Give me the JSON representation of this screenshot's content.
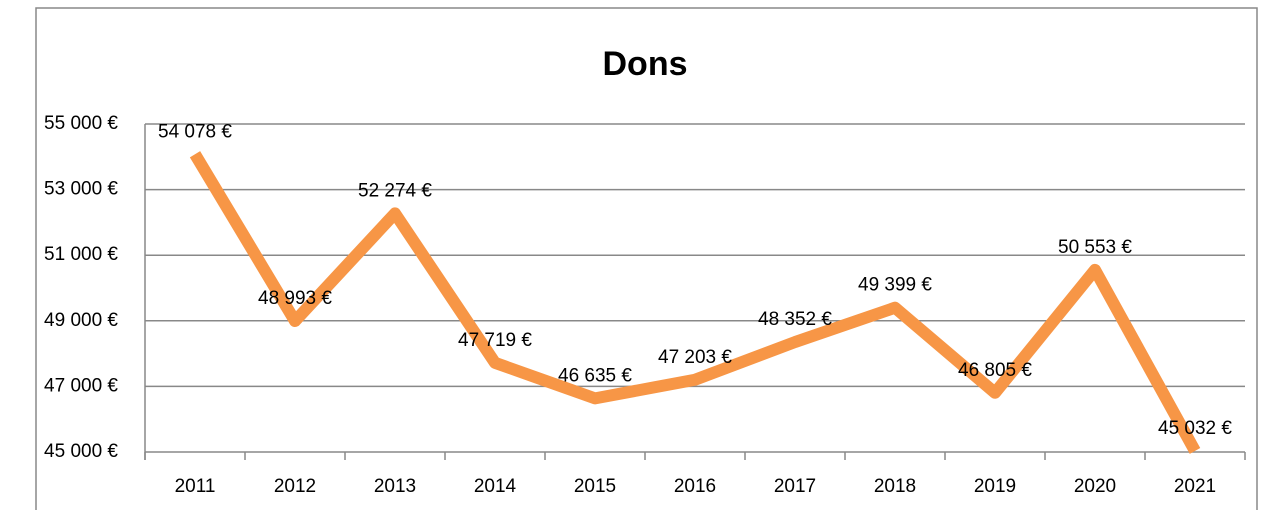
{
  "chart_data": {
    "type": "line",
    "title": "Dons",
    "categories": [
      "2011",
      "2012",
      "2013",
      "2014",
      "2015",
      "2016",
      "2017",
      "2018",
      "2019",
      "2020",
      "2021"
    ],
    "values": [
      54078,
      48993,
      52274,
      47719,
      46635,
      47203,
      48352,
      49399,
      46805,
      50553,
      45032
    ],
    "value_labels": [
      "54 078 €",
      "48 993 €",
      "52 274 €",
      "47 719 €",
      "46 635 €",
      "47 203 €",
      "48 352 €",
      "49 399 €",
      "46 805 €",
      "50 553 €",
      "45 032 €"
    ],
    "color": "#f79646",
    "ylim": [
      45000,
      55000
    ],
    "yticks": [
      {
        "value": 45000,
        "label": "45 000 €"
      },
      {
        "value": 47000,
        "label": "47 000 €"
      },
      {
        "value": 49000,
        "label": "49 000 €"
      },
      {
        "value": 51000,
        "label": "51 000 €"
      },
      {
        "value": 53000,
        "label": "53 000 €"
      },
      {
        "value": 55000,
        "label": "55 000 €"
      }
    ],
    "grid": true
  }
}
